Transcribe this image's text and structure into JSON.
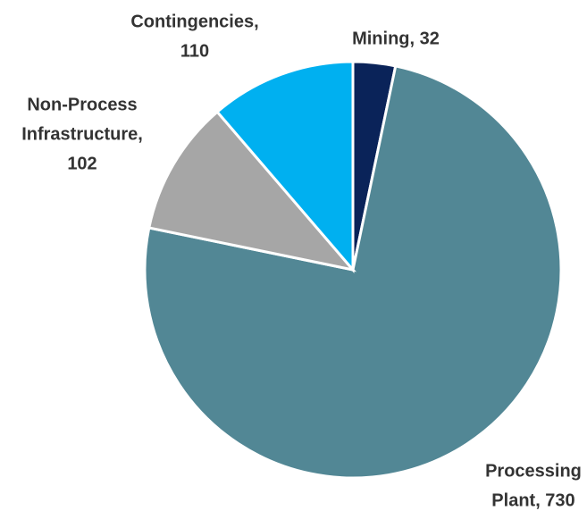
{
  "chart_data": {
    "type": "pie",
    "values": [
      32,
      730,
      102,
      110
    ],
    "value_labels": [
      [
        "Mining, 32"
      ],
      [
        "Processing",
        "Plant,  730"
      ],
      [
        "Non-Process",
        "Infrastructure,",
        "102"
      ],
      [
        "Contingencies,",
        "110"
      ]
    ],
    "colors": [
      "#0a2359",
      "#528795",
      "#a6a6a6",
      "#00b0f0"
    ]
  }
}
